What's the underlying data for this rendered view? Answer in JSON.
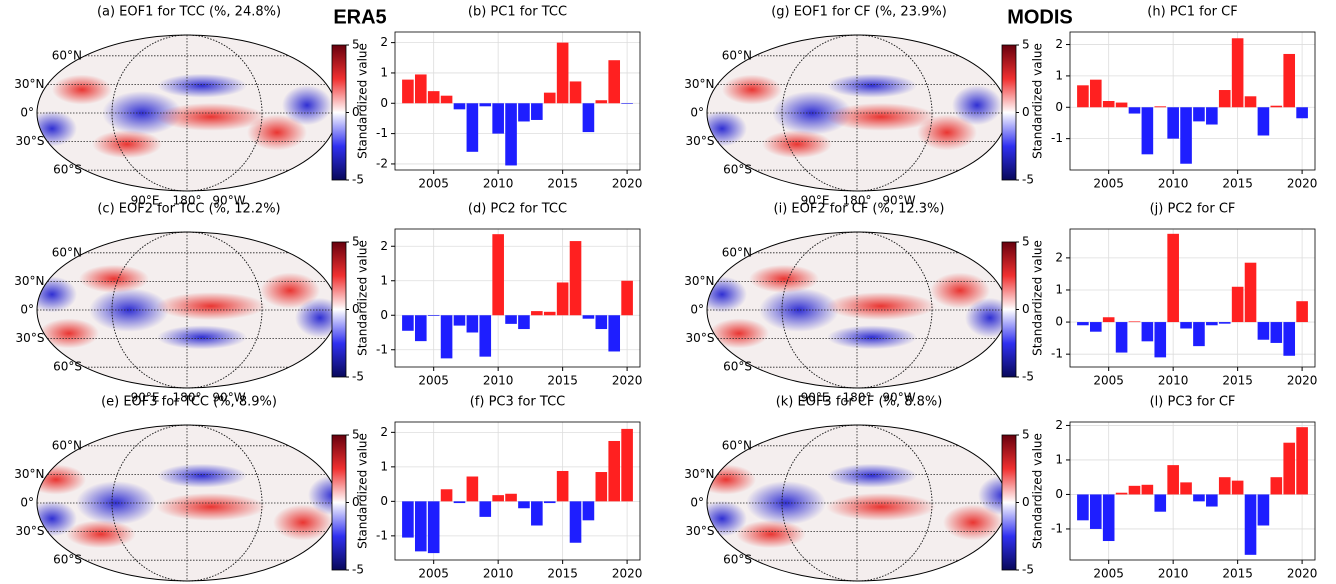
{
  "headers": [
    "ERA5",
    "MODIS"
  ],
  "chart_data": [
    {
      "type": "map",
      "title": "(a) EOF1 for TCC (%, 24.8%)",
      "lat_labels": [
        "60°N",
        "30°N",
        "0°",
        "30°S",
        "60°S"
      ],
      "lon_labels": [
        "90°E",
        "180°",
        "90°W"
      ],
      "clim": [
        -5,
        5
      ],
      "cticks": [
        -5,
        0,
        5
      ]
    },
    {
      "type": "bar",
      "title": "(b) PC1 for TCC",
      "ylabel": "Standardized value",
      "x": [
        2003,
        2004,
        2005,
        2006,
        2007,
        2008,
        2009,
        2010,
        2011,
        2012,
        2013,
        2014,
        2015,
        2016,
        2017,
        2018,
        2019,
        2020
      ],
      "values": [
        0.78,
        0.95,
        0.4,
        0.25,
        -0.2,
        -1.6,
        -0.1,
        -1.0,
        -2.05,
        -0.6,
        -0.55,
        0.35,
        2.0,
        0.72,
        -0.95,
        0.1,
        1.42,
        -0.02
      ],
      "xlim": [
        2002,
        2021
      ],
      "xticks": [
        2005,
        2010,
        2015,
        2020
      ],
      "ylim": [
        -2.2,
        2.35
      ],
      "yticks": [
        -2,
        -1,
        0,
        1,
        2
      ],
      "positive_color": "#ff2020",
      "negative_color": "#1e1eff",
      "grid": true
    },
    {
      "type": "map",
      "title": "(g) EOF1 for CF (%, 23.9%)",
      "lat_labels": [
        "60°N",
        "30°N",
        "0°",
        "30°S",
        "60°S"
      ],
      "lon_labels": [
        "90°E",
        "180°",
        "90°W"
      ],
      "clim": [
        -5,
        5
      ],
      "cticks": [
        -5,
        0,
        5
      ]
    },
    {
      "type": "bar",
      "title": "(h) PC1 for CF",
      "ylabel": "Standardized value",
      "x": [
        2003,
        2004,
        2005,
        2006,
        2007,
        2008,
        2009,
        2010,
        2011,
        2012,
        2013,
        2014,
        2015,
        2016,
        2017,
        2018,
        2019,
        2020
      ],
      "values": [
        0.7,
        0.88,
        0.2,
        0.15,
        -0.2,
        -1.5,
        0.03,
        -1.0,
        -1.8,
        -0.45,
        -0.55,
        0.55,
        2.2,
        0.35,
        -0.9,
        0.05,
        1.7,
        -0.35
      ],
      "xlim": [
        2002,
        2021
      ],
      "xticks": [
        2005,
        2010,
        2015,
        2020
      ],
      "ylim": [
        -2.0,
        2.4
      ],
      "yticks": [
        -1,
        0,
        1,
        2
      ],
      "positive_color": "#ff2020",
      "negative_color": "#1e1eff",
      "grid": true
    },
    {
      "type": "map",
      "title": "(c) EOF2 for TCC (%, 12.2%)",
      "lat_labels": [
        "60°N",
        "30°N",
        "0°",
        "30°S",
        "60°S"
      ],
      "lon_labels": [
        "90°E",
        "180°",
        "90°W"
      ],
      "clim": [
        -5,
        5
      ],
      "cticks": [
        -5,
        0,
        5
      ]
    },
    {
      "type": "bar",
      "title": "(d) PC2 for TCC",
      "ylabel": "Standardized value",
      "x": [
        2003,
        2004,
        2005,
        2006,
        2007,
        2008,
        2009,
        2010,
        2011,
        2012,
        2013,
        2014,
        2015,
        2016,
        2017,
        2018,
        2019,
        2020
      ],
      "values": [
        -0.45,
        -0.75,
        -0.02,
        -1.25,
        -0.3,
        -0.5,
        -1.2,
        2.35,
        -0.25,
        -0.4,
        0.12,
        0.1,
        0.95,
        2.15,
        -0.1,
        -0.4,
        -1.05,
        1.0
      ],
      "xlim": [
        2002,
        2021
      ],
      "xticks": [
        2005,
        2010,
        2015,
        2020
      ],
      "ylim": [
        -1.5,
        2.5
      ],
      "yticks": [
        -1,
        0,
        1,
        2
      ],
      "positive_color": "#ff2020",
      "negative_color": "#1e1eff",
      "grid": true
    },
    {
      "type": "map",
      "title": "(i) EOF2 for CF (%, 12.3%)",
      "lat_labels": [
        "60°N",
        "30°N",
        "0°",
        "30°S",
        "60°S"
      ],
      "lon_labels": [
        "90°E",
        "180°",
        "90°W"
      ],
      "clim": [
        -5,
        5
      ],
      "cticks": [
        -5,
        0,
        5
      ]
    },
    {
      "type": "bar",
      "title": "(j) PC2 for CF",
      "ylabel": "Standardized value",
      "x": [
        2003,
        2004,
        2005,
        2006,
        2007,
        2008,
        2009,
        2010,
        2011,
        2012,
        2013,
        2014,
        2015,
        2016,
        2017,
        2018,
        2019,
        2020
      ],
      "values": [
        -0.1,
        -0.3,
        0.15,
        -0.95,
        0.02,
        -0.6,
        -1.1,
        2.75,
        -0.2,
        -0.75,
        -0.1,
        -0.05,
        1.1,
        1.85,
        -0.55,
        -0.65,
        -1.05,
        0.65
      ],
      "xlim": [
        2002,
        2021
      ],
      "xticks": [
        2005,
        2010,
        2015,
        2020
      ],
      "ylim": [
        -1.4,
        2.9
      ],
      "yticks": [
        -1,
        0,
        1,
        2
      ],
      "positive_color": "#ff2020",
      "negative_color": "#1e1eff",
      "grid": true
    },
    {
      "type": "map",
      "title": "(e) EOF3 for TCC (%, 8.9%)",
      "lat_labels": [
        "60°N",
        "30°N",
        "0°",
        "30°S",
        "60°S"
      ],
      "lon_labels": [
        "90°E",
        "180°",
        "90°W"
      ],
      "clim": [
        -5,
        5
      ],
      "cticks": [
        -5,
        0,
        5
      ]
    },
    {
      "type": "bar",
      "title": "(f) PC3 for TCC",
      "ylabel": "Standardized value",
      "x": [
        2003,
        2004,
        2005,
        2006,
        2007,
        2008,
        2009,
        2010,
        2011,
        2012,
        2013,
        2014,
        2015,
        2016,
        2017,
        2018,
        2019,
        2020
      ],
      "values": [
        -1.05,
        -1.45,
        -1.5,
        0.35,
        -0.05,
        0.72,
        -0.45,
        0.18,
        0.22,
        -0.2,
        -0.7,
        -0.05,
        0.88,
        -1.2,
        -0.55,
        0.85,
        1.75,
        2.1
      ],
      "xlim": [
        2002,
        2021
      ],
      "xticks": [
        2005,
        2010,
        2015,
        2020
      ],
      "ylim": [
        -1.7,
        2.3
      ],
      "yticks": [
        -1,
        0,
        1,
        2
      ],
      "positive_color": "#ff2020",
      "negative_color": "#1e1eff",
      "grid": true
    },
    {
      "type": "map",
      "title": "(k) EOF3 for CF (%, 8.8%)",
      "lat_labels": [
        "60°N",
        "30°N",
        "0°",
        "30°S",
        "60°S"
      ],
      "lon_labels": [
        "90°E",
        "180°",
        "90°W"
      ],
      "clim": [
        -5,
        5
      ],
      "cticks": [
        -5,
        0,
        5
      ]
    },
    {
      "type": "bar",
      "title": "(l) PC3 for CF",
      "ylabel": "Standardized value",
      "x": [
        2003,
        2004,
        2005,
        2006,
        2007,
        2008,
        2009,
        2010,
        2011,
        2012,
        2013,
        2014,
        2015,
        2016,
        2017,
        2018,
        2019,
        2020
      ],
      "values": [
        -0.75,
        -1.0,
        -1.35,
        0.05,
        0.25,
        0.28,
        -0.5,
        0.85,
        0.35,
        -0.2,
        -0.35,
        0.5,
        0.4,
        -1.75,
        -0.9,
        0.5,
        1.5,
        1.95
      ],
      "xlim": [
        2002,
        2021
      ],
      "xticks": [
        2005,
        2010,
        2015,
        2020
      ],
      "ylim": [
        -1.9,
        2.1
      ],
      "yticks": [
        -1,
        0,
        1,
        2
      ],
      "positive_color": "#ff2020",
      "negative_color": "#1e1eff",
      "grid": true
    }
  ]
}
